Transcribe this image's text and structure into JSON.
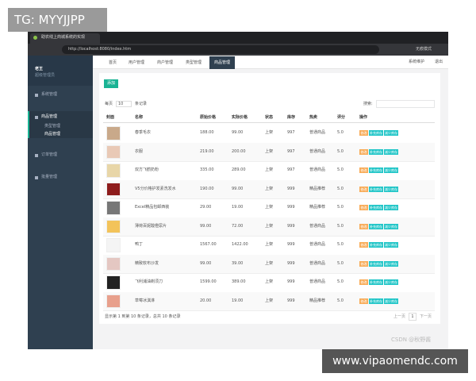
{
  "watermark_top": "TG: MYYJJPP",
  "watermark_bottom": "www.vipaomendc.com",
  "csdn": "CSDN @秋野酱",
  "browser": {
    "tab_title": "助农线上商城系统的实现",
    "url": "http://localhost:8080/index.htm",
    "profile": "无痕模式"
  },
  "sidebar": {
    "user": "老王",
    "role": "超级管理员",
    "menu": [
      {
        "label": "系统管理"
      },
      {
        "label": "商品管理",
        "children": [
          "类型管理",
          "商品管理"
        ]
      },
      {
        "label": "订单管理"
      },
      {
        "label": "批量管理"
      }
    ]
  },
  "topbar": {
    "links": [
      "系统维护",
      "退出"
    ]
  },
  "tabs": [
    "首页",
    "用户管理",
    "商户管理",
    "类型管理",
    "商品管理"
  ],
  "toolbar": {
    "add": "添加",
    "per_page_prefix": "每页",
    "per_page": "10",
    "per_page_suffix": "条记录",
    "search": "搜索:"
  },
  "table": {
    "columns": [
      "封面",
      "名称",
      "原始价格",
      "实际价格",
      "状态",
      "库存",
      "热卖",
      "评分",
      "操作"
    ],
    "rows": [
      [
        "春季毛衣",
        "188.00",
        "99.00",
        "上架",
        "997",
        "普通商品",
        "5.0"
      ],
      [
        "衣服",
        "219.00",
        "200.00",
        "上架",
        "997",
        "普通商品",
        "5.0"
      ],
      [
        "双方飞鹤奶粉",
        "335.00",
        "289.00",
        "上架",
        "997",
        "普通商品",
        "5.0"
      ],
      [
        "V5分价格护发素洗发水",
        "190.00",
        "99.00",
        "上架",
        "999",
        "精品推荐",
        "5.0"
      ],
      [
        "Excel精品包邮西装",
        "29.00",
        "19.00",
        "上架",
        "999",
        "精品推荐",
        "5.0"
      ],
      [
        "薄荷百妮酸橙尿片",
        "99.00",
        "72.00",
        "上架",
        "999",
        "普通商品",
        "5.0"
      ],
      [
        "鸭丁",
        "1567.00",
        "1422.00",
        "上架",
        "999",
        "普通商品",
        "5.0"
      ],
      [
        "精致软布沙发",
        "99.00",
        "39.00",
        "上架",
        "999",
        "普通商品",
        "5.0"
      ],
      [
        "飞利浦油剃须刀",
        "1599.00",
        "389.00",
        "上架",
        "999",
        "普通商品",
        "5.0"
      ],
      [
        "草莓冰淇淋",
        "20.00",
        "19.00",
        "上架",
        "999",
        "精品推荐",
        "5.0"
      ]
    ],
    "actions": [
      "修改",
      "补充库存",
      "减少库存"
    ]
  },
  "footer": {
    "info": "显示第 1 到第 10 条记录，总共 10 条记录",
    "prev": "上一页",
    "page": "1",
    "next": "下一页"
  }
}
